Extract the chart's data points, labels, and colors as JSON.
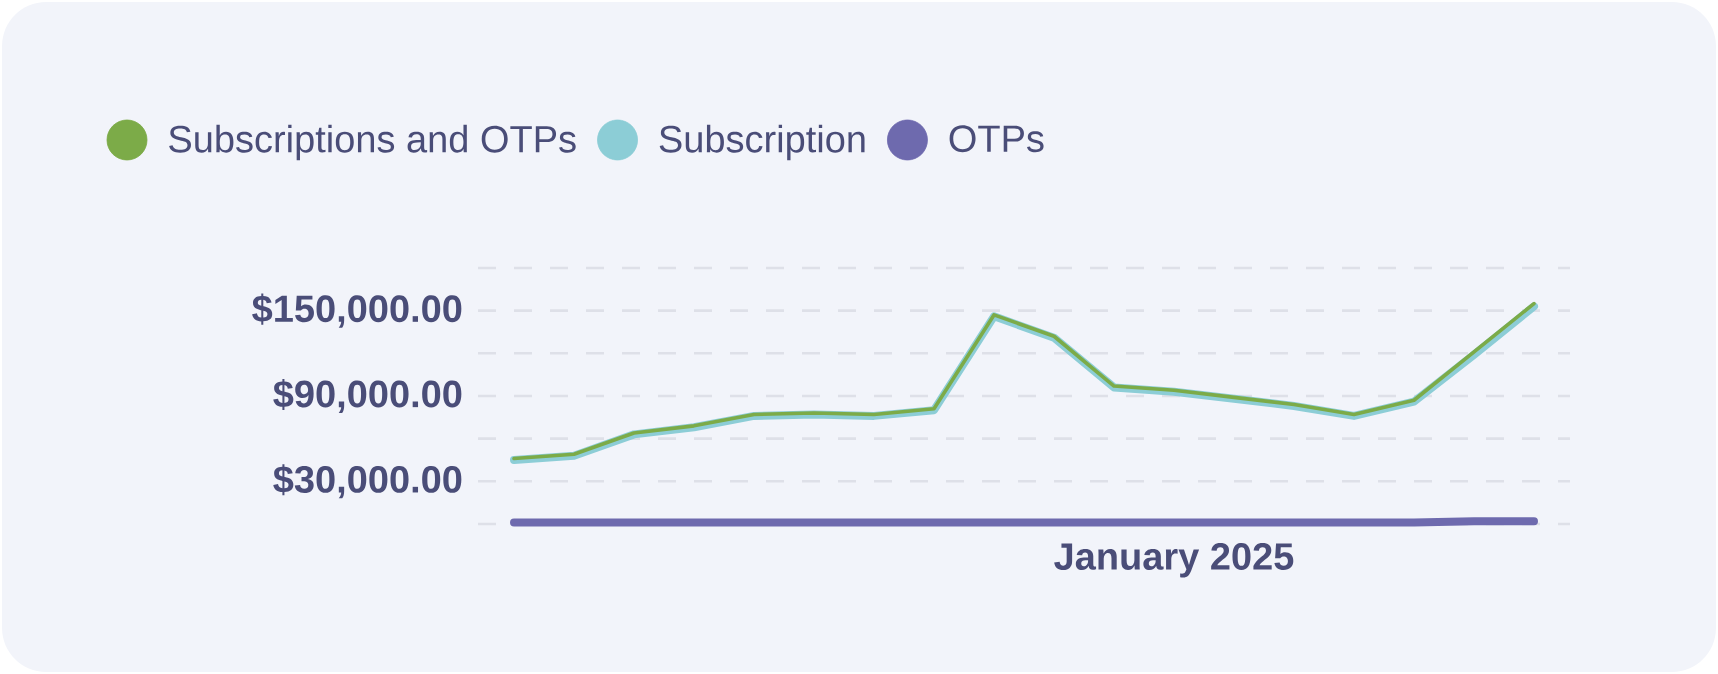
{
  "chart_data": {
    "type": "line",
    "categories": [
      null,
      null,
      null,
      null,
      null,
      null,
      null,
      null,
      null,
      null,
      null,
      "January 2025",
      null,
      null,
      null,
      null,
      null,
      null
    ],
    "series": [
      {
        "name": "Subscriptions and OTPs",
        "color": "#7cab48",
        "values": [
          46000,
          49000,
          64000,
          69000,
          77000,
          78000,
          77000,
          81000,
          147000,
          132000,
          97000,
          94000,
          89000,
          84000,
          77000,
          87000,
          121000,
          155000
        ]
      },
      {
        "name": "Subscription",
        "color": "#8ccdd6",
        "values": [
          45000,
          48000,
          63000,
          68000,
          76000,
          77000,
          76000,
          80000,
          146000,
          131000,
          96000,
          93000,
          88000,
          83000,
          76000,
          86000,
          119000,
          153000
        ]
      },
      {
        "name": "OTPs",
        "color": "#6e6aae",
        "values": [
          1000,
          1000,
          1000,
          1000,
          1000,
          1000,
          1000,
          1000,
          1000,
          1000,
          1000,
          1000,
          1000,
          1000,
          1000,
          1000,
          2000,
          2000
        ]
      }
    ],
    "ylim": [
      0,
      180000
    ],
    "yticks": [
      {
        "value": 0,
        "label": null
      },
      {
        "value": 30000,
        "label": "$30,000.00"
      },
      {
        "value": 60000,
        "label": null
      },
      {
        "value": 90000,
        "label": "$90,000.00"
      },
      {
        "value": 120000,
        "label": null
      },
      {
        "value": 150000,
        "label": "$150,000.00"
      },
      {
        "value": 180000,
        "label": null
      }
    ],
    "grid": "y",
    "legend": "top left",
    "marker": "none",
    "line_style": "solid"
  }
}
